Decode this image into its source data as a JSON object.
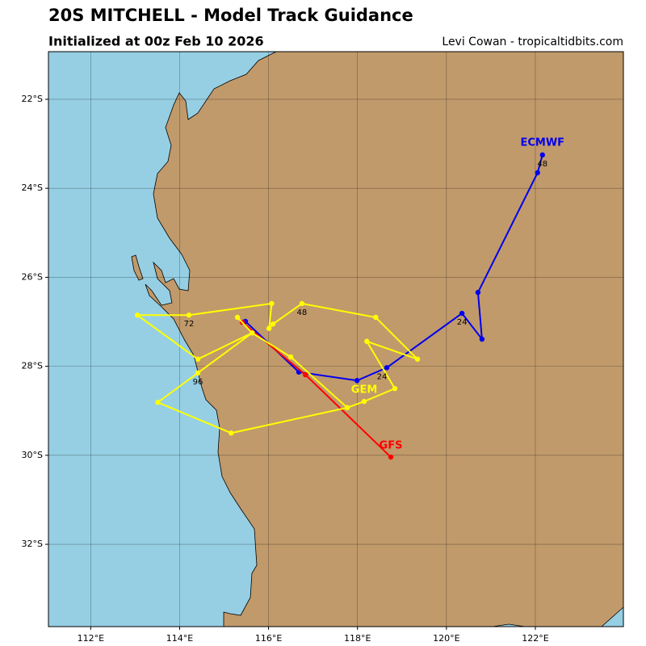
{
  "chart_data": {
    "type": "map",
    "title": "20S MITCHELL - Model Track Guidance",
    "subtitle": "Initialized at 00z Feb 10 2026",
    "credit": "Levi Cowan - tropicaltidbits.com",
    "xlim": [
      111.05,
      123.98
    ],
    "ylim": [
      -33.85,
      -20.93
    ],
    "xticks": [
      {
        "value": 112,
        "label": "112°E"
      },
      {
        "value": 114,
        "label": "114°E"
      },
      {
        "value": 116,
        "label": "116°E"
      },
      {
        "value": 118,
        "label": "118°E"
      },
      {
        "value": 120,
        "label": "120°E"
      },
      {
        "value": 122,
        "label": "122°E"
      }
    ],
    "yticks": [
      {
        "value": -22,
        "label": "22°S"
      },
      {
        "value": -24,
        "label": "24°S"
      },
      {
        "value": -26,
        "label": "26°S"
      },
      {
        "value": -28,
        "label": "28°S"
      },
      {
        "value": -30,
        "label": "30°S"
      },
      {
        "value": -32,
        "label": "32°S"
      }
    ],
    "grid": true,
    "series": [
      {
        "name": "ECMWF",
        "color": "#0000ee",
        "x": [
          115.48,
          116.68,
          117.99,
          118.66,
          120.35,
          120.8,
          120.71,
          122.05,
          122.16
        ],
        "y": [
          -26.99,
          -28.13,
          -28.32,
          -28.03,
          -26.81,
          -27.39,
          -26.34,
          -23.65,
          -23.25
        ]
      },
      {
        "name": "GFS",
        "color": "#ff0000",
        "x": [
          115.41,
          116.83,
          118.75
        ],
        "y": [
          -27.01,
          -28.19,
          -30.04
        ]
      },
      {
        "name": "GEM",
        "color": "#ffff00",
        "x": [
          115.3,
          115.63,
          116.5,
          117.77,
          118.15,
          118.84,
          118.21,
          119.35,
          118.41,
          116.75,
          116.1,
          116.01,
          116.07,
          114.21,
          113.05,
          114.41,
          115.63,
          114.41,
          113.51,
          115.16,
          117.77
        ],
        "y": [
          -26.9,
          -27.25,
          -27.79,
          -28.93,
          -28.79,
          -28.5,
          -27.44,
          -27.84,
          -26.9,
          -26.59,
          -27.05,
          -27.15,
          -26.59,
          -26.85,
          -26.85,
          -27.84,
          -27.25,
          -28.15,
          -28.81,
          -29.5,
          -28.93
        ]
      }
    ],
    "annotations": [
      {
        "text": "48",
        "lon": 122.16,
        "lat": -23.25
      },
      {
        "text": "24",
        "lon": 120.35,
        "lat": -26.81
      },
      {
        "text": "48",
        "lon": 116.75,
        "lat": -26.59
      },
      {
        "text": "72",
        "lon": 114.21,
        "lat": -26.85
      },
      {
        "text": "96",
        "lon": 114.41,
        "lat": -28.15
      },
      {
        "text": "24",
        "lon": 118.55,
        "lat": -28.03
      }
    ]
  }
}
